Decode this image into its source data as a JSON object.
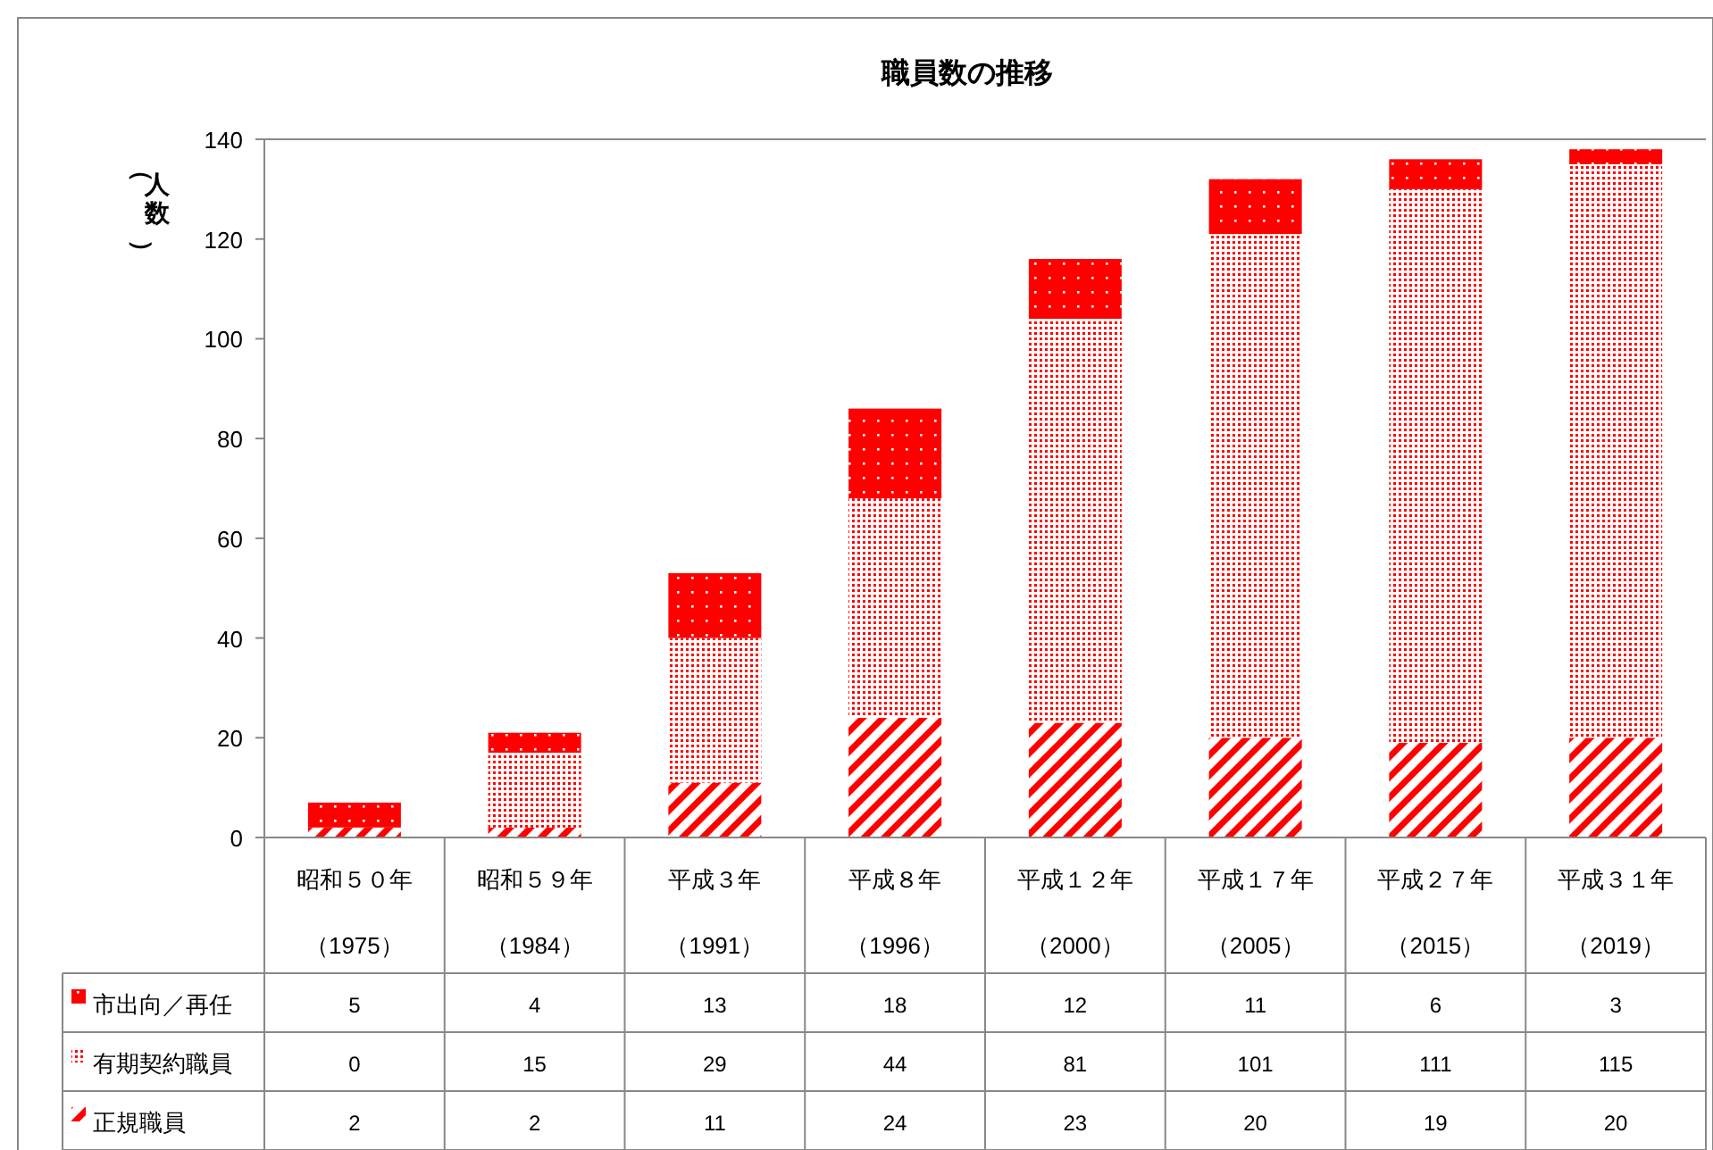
{
  "chart_data": {
    "type": "bar",
    "title": "職員数の推移",
    "ylabel": "（人数）",
    "stacked": true,
    "data_labels": true,
    "grid": false,
    "legend": "bottom left",
    "categories": [
      "昭和５０年（1975）",
      "昭和５９年（1984）",
      "平成３年（1991）",
      "平成８年（1996）",
      "平成１２年（2000）",
      "平成１７年（2005）",
      "平成２７年（2015）",
      "平成３１年（2019）"
    ],
    "ylim": [
      0,
      140
    ],
    "yticks": [
      0,
      20,
      40,
      60,
      80,
      100,
      120,
      140
    ],
    "series": [
      {
        "name": "正規職員",
        "color": "#ff0000",
        "values": [
          2,
          2,
          11,
          24,
          23,
          20,
          19,
          20
        ]
      },
      {
        "name": "有期契約職員",
        "color": "#ff0000",
        "values": [
          0,
          15,
          29,
          44,
          81,
          101,
          111,
          115
        ]
      },
      {
        "name": "市出向／再任",
        "color": "#ff0000",
        "values": [
          5,
          4,
          13,
          18,
          12,
          11,
          6,
          3
        ]
      }
    ]
  }
}
